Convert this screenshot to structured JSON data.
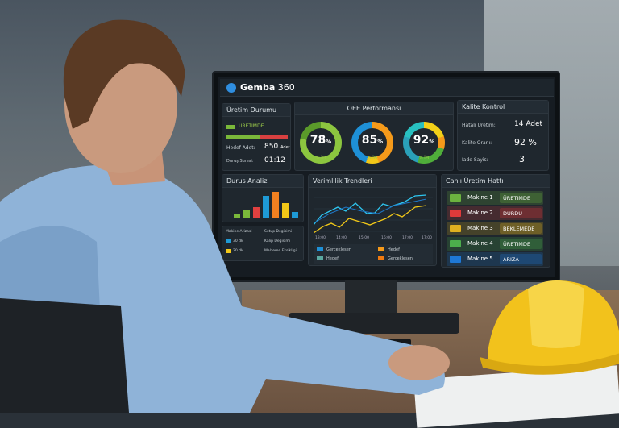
{
  "app": {
    "title_bold": "Gemba",
    "title_rest": "360"
  },
  "production": {
    "title": "Üretim Durumu",
    "status": "ÜRETIMDE",
    "target_label": "Hedef Adet:",
    "target_value": "850",
    "target_unit": "Adet",
    "downtime_label": "Duruş Suresi:",
    "downtime_value": "01:12"
  },
  "oee": {
    "title": "OEE Performansı",
    "gauges": [
      {
        "value": "78",
        "unit": "%",
        "sub": "% İM"
      },
      {
        "value": "85",
        "unit": "%",
        "sub": "% İM"
      },
      {
        "value": "92",
        "unit": "%",
        "sub": "% İM"
      }
    ]
  },
  "quality": {
    "title": "Kalite Kontrol",
    "rows": [
      {
        "label": "Hatali Uretim:",
        "value": "14 Adet"
      },
      {
        "label": "Kalite Oranı:",
        "value": "92 %"
      },
      {
        "label": "Iade Sayis:",
        "value": "3"
      }
    ]
  },
  "downtime": {
    "title": "Durus Analizi",
    "legend": [
      "Makine Arizasi",
      "Setup Degisimi",
      "30 dk",
      "Kalip Degisimi",
      "20 dk",
      "Malzeme Eksikligi"
    ],
    "bar_colors": [
      "#7ab83a",
      "#7ab83a",
      "#e04040",
      "#1e9ad6",
      "#f08020",
      "#f2c818",
      "#1e9ad6"
    ],
    "bar_values": [
      12,
      22,
      28,
      60,
      70,
      40,
      15
    ]
  },
  "trend": {
    "title": "Verimlilik Trendleri",
    "x_ticks": [
      "13:00",
      "14:00",
      "15:00",
      "16:00",
      "17:00",
      "17:00"
    ],
    "legend": [
      "Gerçekleşen",
      "Hedef",
      "Hedef",
      "Gerçekleşen"
    ]
  },
  "line": {
    "title": "Canlı Üretim Hattı",
    "machines": [
      {
        "name": "Makine 1",
        "status": "ÜRETIMDE",
        "color": "#6cb33f"
      },
      {
        "name": "Makine 2",
        "status": "DURDU",
        "color": "#e03a3a"
      },
      {
        "name": "Makine 3",
        "status": "BEKLEMEDE",
        "color": "#e0b020"
      },
      {
        "name": "Makine 4",
        "status": "ÜRETIMDE",
        "color": "#4cae4c"
      },
      {
        "name": "Makine 5",
        "status": "ARIZA",
        "color": "#1e78d6"
      }
    ]
  }
}
